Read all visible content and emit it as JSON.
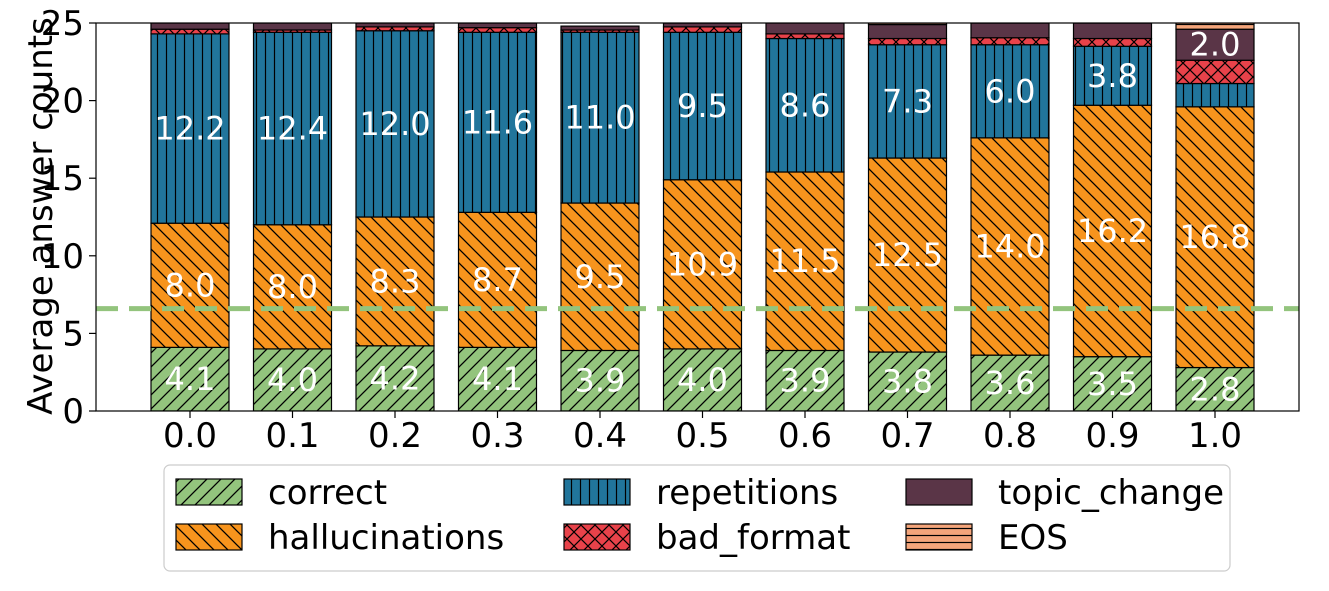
{
  "chart_data": {
    "type": "bar",
    "stacked": true,
    "categories": [
      "0.0",
      "0.1",
      "0.2",
      "0.3",
      "0.4",
      "0.5",
      "0.6",
      "0.7",
      "0.8",
      "0.9",
      "1.0"
    ],
    "xlabel": "",
    "ylabel": "Average answer counts",
    "ylim": [
      0,
      25
    ],
    "yticks": [
      0,
      5,
      10,
      15,
      20,
      25
    ],
    "grid": false,
    "legend_position": "bottom",
    "reference_line": {
      "y": 6.6,
      "color": "#93c47d",
      "style": "dashed"
    },
    "series": [
      {
        "name": "correct",
        "color": "#93c47d",
        "hatch": "forward",
        "values": [
          4.1,
          4.0,
          4.2,
          4.1,
          3.9,
          4.0,
          3.9,
          3.8,
          3.6,
          3.5,
          2.8
        ],
        "labels": [
          "4.1",
          "4.0",
          "4.2",
          "4.1",
          "3.9",
          "4.0",
          "3.9",
          "3.8",
          "3.6",
          "3.5",
          "2.8"
        ]
      },
      {
        "name": "hallucinations",
        "color": "#f7941d",
        "hatch": "back",
        "values": [
          8.0,
          8.0,
          8.3,
          8.7,
          9.5,
          10.9,
          11.5,
          12.5,
          14.0,
          16.2,
          16.8
        ],
        "labels": [
          "8.0",
          "8.0",
          "8.3",
          "8.7",
          "9.5",
          "10.9",
          "11.5",
          "12.5",
          "14.0",
          "16.2",
          "16.8"
        ]
      },
      {
        "name": "repetitions",
        "color": "#21759b",
        "hatch": "vertical",
        "values": [
          12.2,
          12.4,
          12.0,
          11.6,
          11.0,
          9.5,
          8.6,
          7.3,
          6.0,
          3.8,
          1.5
        ],
        "labels": [
          "12.2",
          "12.4",
          "12.0",
          "11.6",
          "11.0",
          "9.5",
          "8.6",
          "7.3",
          "6.0",
          "3.8",
          ""
        ]
      },
      {
        "name": "bad_format",
        "color": "#e8424a",
        "hatch": "cross",
        "values": [
          0.3,
          0.15,
          0.25,
          0.3,
          0.15,
          0.35,
          0.3,
          0.4,
          0.45,
          0.5,
          1.5
        ],
        "labels": [
          "",
          "",
          "",
          "",
          "",
          "",
          "",
          "",
          "",
          "",
          ""
        ]
      },
      {
        "name": "topic_change",
        "color": "#5a3547",
        "hatch": "none",
        "values": [
          0.4,
          0.45,
          0.25,
          0.3,
          0.25,
          0.25,
          0.7,
          0.9,
          0.95,
          1.0,
          2.0
        ],
        "labels": [
          "",
          "",
          "",
          "",
          "",
          "",
          "",
          "",
          "",
          "",
          "2.0"
        ]
      },
      {
        "name": "EOS",
        "color": "#f4a57b",
        "hatch": "horizontal",
        "values": [
          0.0,
          0.0,
          0.0,
          0.0,
          0.0,
          0.1,
          0.0,
          0.1,
          0.15,
          0.2,
          0.4
        ],
        "labels": [
          "",
          "",
          "",
          "",
          "",
          "",
          "",
          "",
          "",
          "",
          ""
        ]
      }
    ]
  }
}
